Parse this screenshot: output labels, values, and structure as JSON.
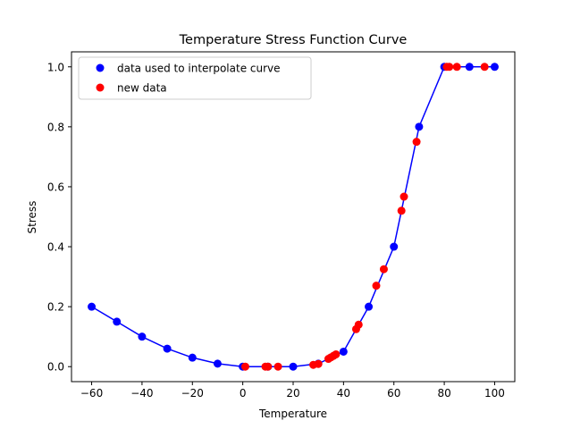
{
  "chart_data": {
    "type": "scatter",
    "title": "Temperature Stress Function Curve",
    "xlabel": "Temperature",
    "ylabel": "Stress",
    "xlim": [
      -68,
      108
    ],
    "ylim": [
      -0.05,
      1.05
    ],
    "xticks": [
      -60,
      -40,
      -20,
      0,
      20,
      40,
      60,
      80,
      100
    ],
    "yticks": [
      0.0,
      0.2,
      0.4,
      0.6,
      0.8,
      1.0
    ],
    "xtick_labels": [
      "−60",
      "−40",
      "−20",
      "0",
      "20",
      "40",
      "60",
      "80",
      "100"
    ],
    "ytick_labels": [
      "0.0",
      "0.2",
      "0.4",
      "0.6",
      "0.8",
      "1.0"
    ],
    "grid": false,
    "legend_position": "top-left",
    "series": [
      {
        "name": "data used to interpolate curve",
        "color": "#0000ff",
        "line": true,
        "x": [
          -60,
          -50,
          -40,
          -30,
          -20,
          -10,
          0,
          10,
          20,
          30,
          40,
          50,
          60,
          70,
          80,
          90,
          100
        ],
        "y": [
          0.2,
          0.15,
          0.1,
          0.06,
          0.03,
          0.01,
          0.0,
          0.0,
          0.0,
          0.01,
          0.05,
          0.2,
          0.4,
          0.8,
          1.0,
          1.0,
          1.0
        ]
      },
      {
        "name": "new data",
        "color": "#ff0000",
        "line": false,
        "x": [
          1,
          9,
          10,
          14,
          28,
          30,
          34,
          35,
          36,
          37,
          45,
          46,
          53,
          56,
          63,
          64,
          69,
          81,
          82,
          85,
          96
        ],
        "y": [
          0.0,
          0.0,
          0.0,
          0.0,
          0.006,
          0.009,
          0.026,
          0.031,
          0.036,
          0.041,
          0.125,
          0.14,
          0.27,
          0.325,
          0.52,
          0.567,
          0.75,
          1.0,
          1.0,
          1.0,
          1.0
        ]
      }
    ]
  }
}
